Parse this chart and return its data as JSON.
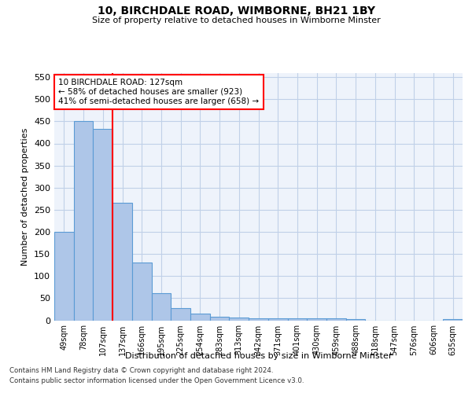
{
  "title": "10, BIRCHDALE ROAD, WIMBORNE, BH21 1BY",
  "subtitle": "Size of property relative to detached houses in Wimborne Minster",
  "xlabel": "Distribution of detached houses by size in Wimborne Minster",
  "ylabel": "Number of detached properties",
  "footer_line1": "Contains HM Land Registry data © Crown copyright and database right 2024.",
  "footer_line2": "Contains public sector information licensed under the Open Government Licence v3.0.",
  "categories": [
    "49sqm",
    "78sqm",
    "107sqm",
    "137sqm",
    "166sqm",
    "195sqm",
    "225sqm",
    "254sqm",
    "283sqm",
    "313sqm",
    "342sqm",
    "371sqm",
    "401sqm",
    "430sqm",
    "459sqm",
    "488sqm",
    "518sqm",
    "547sqm",
    "576sqm",
    "606sqm",
    "635sqm"
  ],
  "values": [
    200,
    450,
    433,
    265,
    130,
    62,
    28,
    15,
    8,
    6,
    5,
    5,
    5,
    5,
    5,
    3,
    0,
    0,
    0,
    0,
    3
  ],
  "bar_color": "#aec6e8",
  "bar_edge_color": "#5b9bd5",
  "vline_x_index": 2.5,
  "vline_color": "red",
  "annotation_text": "10 BIRCHDALE ROAD: 127sqm\n← 58% of detached houses are smaller (923)\n41% of semi-detached houses are larger (658) →",
  "annotation_box_color": "white",
  "annotation_box_edge": "red",
  "ylim": [
    0,
    560
  ],
  "yticks": [
    0,
    50,
    100,
    150,
    200,
    250,
    300,
    350,
    400,
    450,
    500,
    550
  ],
  "background_color": "#eef3fb",
  "grid_color": "#c0d0e8"
}
